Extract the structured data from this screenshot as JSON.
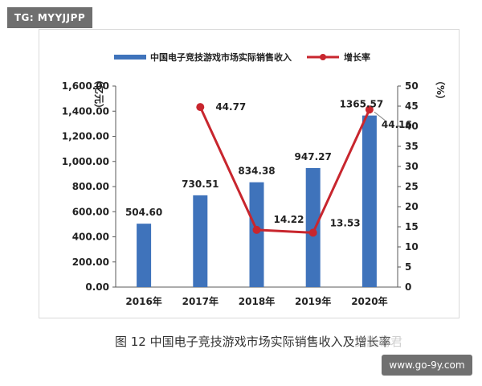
{
  "badge": {
    "text": "TG: MYYJJPP"
  },
  "footer": {
    "url": "www.go-9y.com"
  },
  "caption": {
    "text": "图 12  中国电子竞技游戏市场实际销售收入及增长率",
    "watermark": "资嵩萄君"
  },
  "colors": {
    "bar": "#3f73bb",
    "line": "#c8262e",
    "axis": "#595959"
  },
  "chart_data": {
    "type": "bar",
    "categories": [
      "2016年",
      "2017年",
      "2018年",
      "2019年",
      "2020年"
    ],
    "series": [
      {
        "name": "中国电子竞技游戏市场实际销售收入",
        "type": "bar",
        "axis": "left",
        "values": [
          504.6,
          730.51,
          834.38,
          947.27,
          1365.57
        ],
        "labels": [
          "504.60",
          "730.51",
          "834.38",
          "947.27",
          "1365.57"
        ]
      },
      {
        "name": "增长率",
        "type": "line",
        "axis": "right",
        "values": [
          null,
          44.77,
          14.22,
          13.53,
          44.16
        ],
        "labels": [
          "",
          "44.77",
          "14.22",
          "13.53",
          "44.16"
        ]
      }
    ],
    "ylabel": "（亿元）",
    "y2label": "（%）",
    "ylim": [
      0,
      1600
    ],
    "y2lim": [
      0,
      50
    ],
    "yticks": [
      "0.00",
      "200.00",
      "400.00",
      "600.00",
      "800.00",
      "1,000.00",
      "1,200.00",
      "1,400.00",
      "1,600.00"
    ],
    "y2ticks": [
      "0",
      "5",
      "10",
      "15",
      "20",
      "25",
      "30",
      "35",
      "40",
      "45",
      "50"
    ],
    "legend": "top",
    "grid": false
  }
}
